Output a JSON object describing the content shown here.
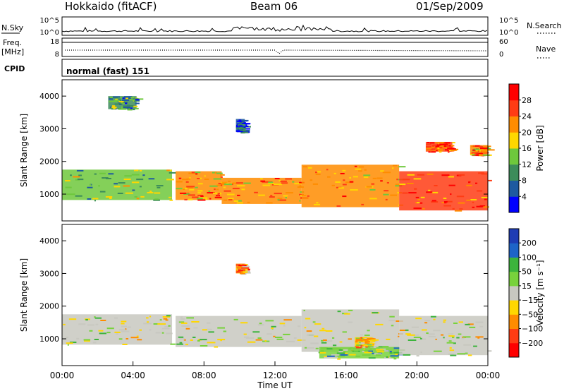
{
  "header": {
    "radar": "Hokkaido (fitACF)",
    "beam": "Beam 06",
    "date": "01/Sep/2009"
  },
  "params": {
    "nsky_label": "N.Sky",
    "nsearch_label": "N.Search",
    "freq_label_1": "Freq.",
    "freq_label_2": "[MHz]",
    "nave_label": "Nave",
    "cpid_label": "CPID",
    "cpid_value": "normal (fast) 151",
    "noise_ticks": [
      "10^5",
      "10^0"
    ],
    "freq_ticks": [
      "18",
      "8"
    ],
    "nave_ticks": [
      "60",
      "0"
    ]
  },
  "chart_data": [
    {
      "type": "heatmap",
      "name": "power",
      "ylabel": "Slant Range [km]",
      "xlabel": "Time UT",
      "xlim": [
        0,
        24
      ],
      "ylim": [
        180,
        4500
      ],
      "x_ticks": [
        "00:00",
        "04:00",
        "08:00",
        "12:00",
        "16:00",
        "20:00",
        "00:00"
      ],
      "y_ticks": [
        1000,
        2000,
        3000,
        4000
      ],
      "colorbar": {
        "label": "Power [dB]",
        "ticks": [
          "4",
          "8",
          "12",
          "16",
          "20",
          "24",
          "28"
        ],
        "colors": [
          "#0000ff",
          "#1e5aa0",
          "#3c8c5a",
          "#6ec83c",
          "#ffd700",
          "#ff8c00",
          "#ff3c14",
          "#ff0000"
        ]
      },
      "regions": [
        {
          "t0": 0.0,
          "t1": 6.2,
          "r0": 820,
          "r1": 1750,
          "level": 3
        },
        {
          "t0": 6.4,
          "t1": 9.0,
          "r0": 820,
          "r1": 1700,
          "level": 5
        },
        {
          "t0": 9.0,
          "t1": 13.5,
          "r0": 700,
          "r1": 1500,
          "level": 5
        },
        {
          "t0": 13.5,
          "t1": 19.0,
          "r0": 600,
          "r1": 1900,
          "level": 5
        },
        {
          "t0": 19.0,
          "t1": 24.0,
          "r0": 500,
          "r1": 1700,
          "level": 6
        },
        {
          "t0": 20.5,
          "t1": 22.0,
          "r0": 2300,
          "r1": 2600,
          "level": 6
        },
        {
          "t0": 23.0,
          "t1": 24.0,
          "r0": 2200,
          "r1": 2500,
          "level": 5
        },
        {
          "t0": 2.6,
          "t1": 4.2,
          "r0": 3600,
          "r1": 4000,
          "level": 2
        },
        {
          "t0": 9.8,
          "t1": 10.3,
          "r0": 2900,
          "r1": 3300,
          "level": 1
        }
      ]
    },
    {
      "type": "heatmap",
      "name": "velocity",
      "ylabel": "Slant Range [km]",
      "xlabel": "Time UT",
      "xlim": [
        0,
        24
      ],
      "ylim": [
        180,
        4500
      ],
      "x_ticks": [
        "00:00",
        "04:00",
        "08:00",
        "12:00",
        "16:00",
        "20:00",
        "00:00"
      ],
      "y_ticks": [
        1000,
        2000,
        3000,
        4000
      ],
      "colorbar": {
        "label": "Velocity [m s⁻¹]",
        "ticks": [
          "200",
          "100",
          "50",
          "15",
          "−15",
          "−50",
          "−100",
          "−200"
        ],
        "colors": [
          "#1e3cb4",
          "#1e64c8",
          "#3cb43c",
          "#78d23c",
          "#c8c8c0",
          "#ffd700",
          "#ff8c00",
          "#ff3c14",
          "#ff0000"
        ]
      },
      "regions": [
        {
          "t0": 0.0,
          "t1": 6.2,
          "r0": 820,
          "r1": 1750,
          "level": 4
        },
        {
          "t0": 6.4,
          "t1": 13.5,
          "r0": 750,
          "r1": 1700,
          "level": 4
        },
        {
          "t0": 13.5,
          "t1": 19.0,
          "r0": 600,
          "r1": 1900,
          "level": 4
        },
        {
          "t0": 14.5,
          "t1": 19.0,
          "r0": 400,
          "r1": 750,
          "level": 3
        },
        {
          "t0": 16.5,
          "t1": 17.5,
          "r0": 750,
          "r1": 1050,
          "level": 5
        },
        {
          "t0": 19.0,
          "t1": 24.0,
          "r0": 500,
          "r1": 1700,
          "level": 4
        },
        {
          "t0": 9.8,
          "t1": 10.3,
          "r0": 3000,
          "r1": 3300,
          "level": 6
        }
      ]
    }
  ]
}
